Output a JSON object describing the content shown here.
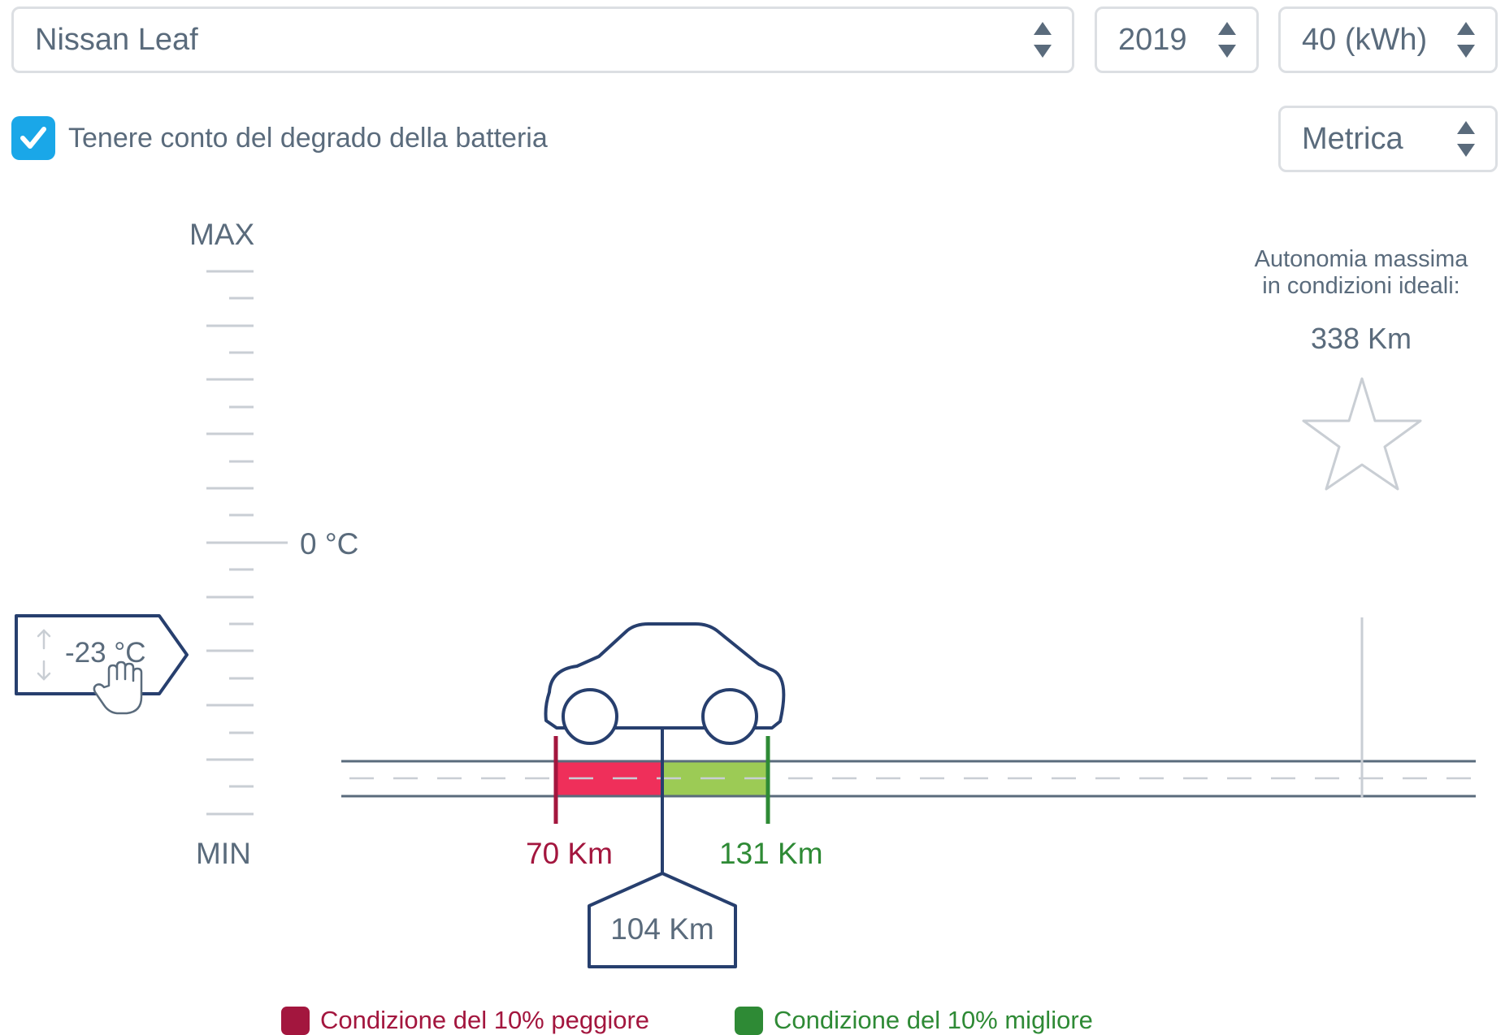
{
  "selects": {
    "model": {
      "value": "Nissan Leaf",
      "icon": "updown-arrows-icon"
    },
    "year": {
      "value": "2019",
      "icon": "updown-arrows-icon"
    },
    "battery": {
      "value": "40 (kWh)",
      "icon": "updown-arrows-icon"
    },
    "units": {
      "value": "Metrica",
      "icon": "updown-arrows-icon"
    }
  },
  "degradation": {
    "label": "Tenere conto del degrado della batteria",
    "checked": true,
    "icon": "check-icon"
  },
  "temperature_scale": {
    "max_label": "MAX",
    "min_label": "MIN",
    "zero_label": "0 °C",
    "current": "-23 °C",
    "handle_icons": [
      "updown-thin-arrows-icon",
      "hand-pointer-icon"
    ]
  },
  "max_range": {
    "caption_line1": "Autonomia massima",
    "caption_line2": "in condizioni ideali:",
    "value": "338 Km",
    "icon": "star-icon"
  },
  "range_result": {
    "worse": "70 Km",
    "typical": "104 Km",
    "better": "131 Km",
    "icon": "car-icon"
  },
  "legend": {
    "worse": "Condizione del 10% peggiore",
    "better": "Condizione del 10% migliore"
  },
  "colors": {
    "accent": "#1aa7e8",
    "navy": "#273f6e",
    "worse_bar": "#ef2f5a",
    "worse_text": "#a3163e",
    "better_bar": "#9ccb55",
    "better_text": "#2e8a35",
    "muted": "#5a6b7c",
    "light_border": "#dcdfe3"
  }
}
